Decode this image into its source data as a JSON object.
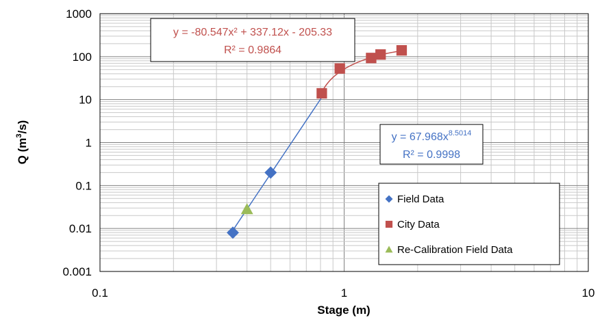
{
  "chart_data": {
    "type": "scatter",
    "xscale": "log",
    "yscale": "log",
    "xlim": [
      0.1,
      10
    ],
    "ylim": [
      0.001,
      1000
    ],
    "xlabel": "Stage (m)",
    "ylabel_main": "Q (m",
    "ylabel_sup": "3",
    "ylabel_end": "/s)",
    "xticks": [
      "0.1",
      "1",
      "10"
    ],
    "yticks": [
      "0.001",
      "0.01",
      "0.1",
      "1",
      "10",
      "100",
      "1000"
    ],
    "grid": "major and minor",
    "legend_position": "bottom-right",
    "series": [
      {
        "name": "Field Data",
        "marker": "diamond",
        "color": "#4472C4",
        "x": [
          0.35,
          0.5
        ],
        "y": [
          0.008,
          0.2
        ]
      },
      {
        "name": "City Data",
        "marker": "square",
        "color": "#C0504D",
        "x": [
          0.81,
          0.96,
          1.29,
          1.41,
          1.72
        ],
        "y": [
          14,
          53,
          93,
          112,
          140
        ]
      },
      {
        "name": "Re-Calibration Field Data",
        "marker": "triangle",
        "color": "#9BBB59",
        "x": [
          0.4
        ],
        "y": [
          0.028
        ]
      }
    ],
    "trendlines": [
      {
        "series": "Field Data",
        "type": "power",
        "a": 67.968,
        "b": 8.5014,
        "x_range": [
          0.35,
          0.81
        ],
        "color": "#4472C4",
        "equation_main": "y = 67.968x",
        "equation_sup": "8.5014",
        "r2": "R² = 0.9998"
      },
      {
        "series": "City Data",
        "type": "poly2",
        "c2": -80.547,
        "c1": 337.12,
        "c0": -205.33,
        "x_range": [
          0.81,
          1.72
        ],
        "color": "#C0504D",
        "equation": "y = -80.547x² + 337.12x - 205.33",
        "r2": "R² = 0.9864"
      }
    ]
  }
}
